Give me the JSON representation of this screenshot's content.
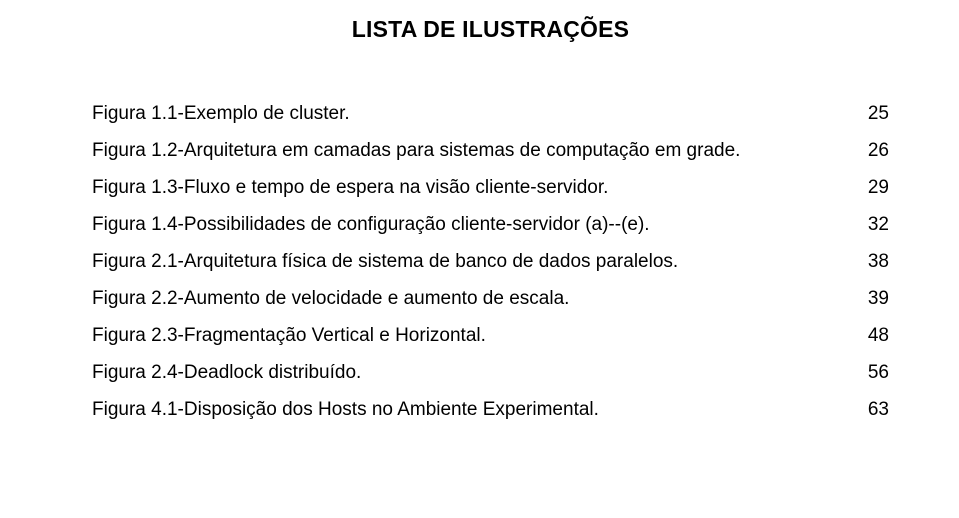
{
  "title": "LISTA DE ILUSTRAÇÕES",
  "entries": [
    {
      "label": "Figura 1.1-Exemplo de cluster.",
      "page": "25"
    },
    {
      "label": "Figura 1.2-Arquitetura em camadas para sistemas de computação em grade.",
      "page": "26"
    },
    {
      "label": "Figura 1.3-Fluxo e tempo de espera na visão cliente-servidor.",
      "page": "29"
    },
    {
      "label": "Figura 1.4-Possibilidades de configuração cliente-servidor (a)--(e).",
      "page": "32"
    },
    {
      "label": "Figura 2.1-Arquitetura física de sistema de banco de dados paralelos.",
      "page": "38"
    },
    {
      "label": "Figura 2.2-Aumento de velocidade e aumento de escala.",
      "page": "39"
    },
    {
      "label": "Figura 2.3-Fragmentação Vertical e Horizontal.",
      "page": "48"
    },
    {
      "label": "Figura 2.4-Deadlock distribuído.",
      "page": "56"
    },
    {
      "label": "Figura 4.1-Disposição dos Hosts no Ambiente Experimental.",
      "page": "63"
    }
  ]
}
